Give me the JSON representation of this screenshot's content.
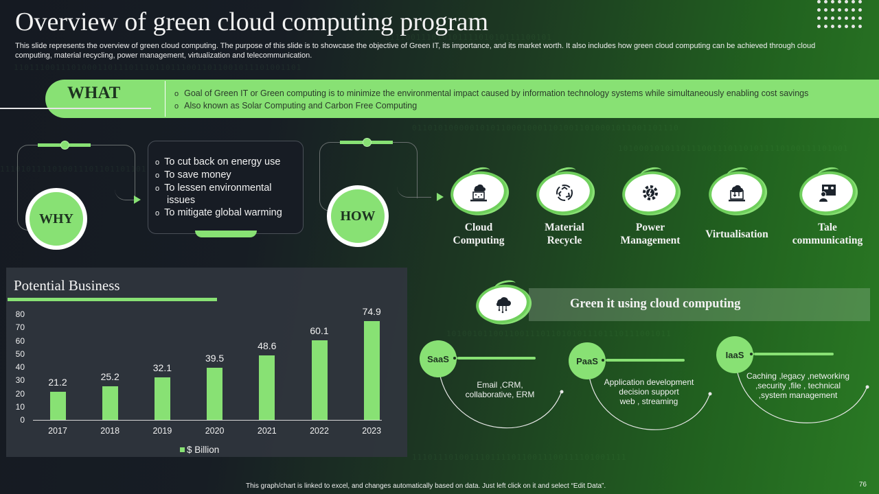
{
  "header": {
    "title": "Overview of green cloud computing program",
    "subtitle": "This slide represents the overview of green cloud computing. The purpose of this slide is to showcase the objective of Green IT, its importance, and its market worth. It also includes how green cloud computing can be achieved through cloud computing, material recycling, power management, virtualization and telecommunication."
  },
  "what": {
    "label": "WHAT",
    "items": [
      "Goal of Green IT or Green computing is to minimize the environmental  impact caused by information  technology systems while  simultaneously enabling  cost savings",
      "Also known as Solar Computing and Carbon Free Computing"
    ]
  },
  "why": {
    "label": "WHY",
    "items": [
      "To cut back on energy use",
      "To save money",
      "To lessen environmental issues",
      "To mitigate global warming"
    ]
  },
  "how": {
    "label": "HOW",
    "items": [
      {
        "line1": "Cloud",
        "line2": "Computing",
        "icon": "cloud-laptop-icon"
      },
      {
        "line1": "Material",
        "line2": "Recycle",
        "icon": "recycle-icon"
      },
      {
        "line1": "Power",
        "line2": "Management",
        "icon": "power-gear-icon"
      },
      {
        "line1": "Virtualisation",
        "line2": "",
        "icon": "cloud-transfer-icon"
      },
      {
        "line1": "Tale",
        "line2": "communicating",
        "icon": "video-conference-icon"
      }
    ]
  },
  "green_it": {
    "title": "Green it using cloud computing",
    "icon": "cloud-network-icon",
    "services": [
      {
        "name": "SaaS",
        "line1": "Email ,CRM,",
        "line2": "collaborative, ERM",
        "line3": ""
      },
      {
        "name": "PaaS",
        "line1": "Application development",
        "line2": "decision support",
        "line3": "web ,  streaming"
      },
      {
        "name": "IaaS",
        "line1": "Caching ,legacy ,networking",
        "line2": ",security ,file ,  technical",
        "line3": ",system management"
      }
    ]
  },
  "chart_data": {
    "type": "bar",
    "title": "Potential Business",
    "categories": [
      "2017",
      "2018",
      "2019",
      "2020",
      "2021",
      "2022",
      "2023"
    ],
    "series": [
      {
        "name": "$ Billion",
        "values": [
          21.2,
          25.2,
          32.1,
          39.5,
          48.6,
          60.1,
          74.9
        ]
      }
    ],
    "value_labels": [
      "21.2",
      "25.2",
      "32.1",
      "39.5",
      "48.6",
      "60.1",
      "74.9"
    ],
    "yticks": [
      "80",
      "70",
      "60",
      "50",
      "40",
      "30",
      "20",
      "10",
      "0"
    ],
    "ylim": [
      0,
      80
    ],
    "xlabel": "",
    "ylabel": "",
    "grid": false,
    "legend_position": "bottom",
    "colors": {
      "bar": "#88e174"
    }
  },
  "footer": {
    "note": "This graph/chart is linked to excel, and changes automatically based on data. Just left click on it and select “Edit Data”.",
    "page": "76"
  },
  "colors": {
    "accent": "#88e174",
    "dark": "#171c24",
    "label_dark": "#1d3320"
  }
}
